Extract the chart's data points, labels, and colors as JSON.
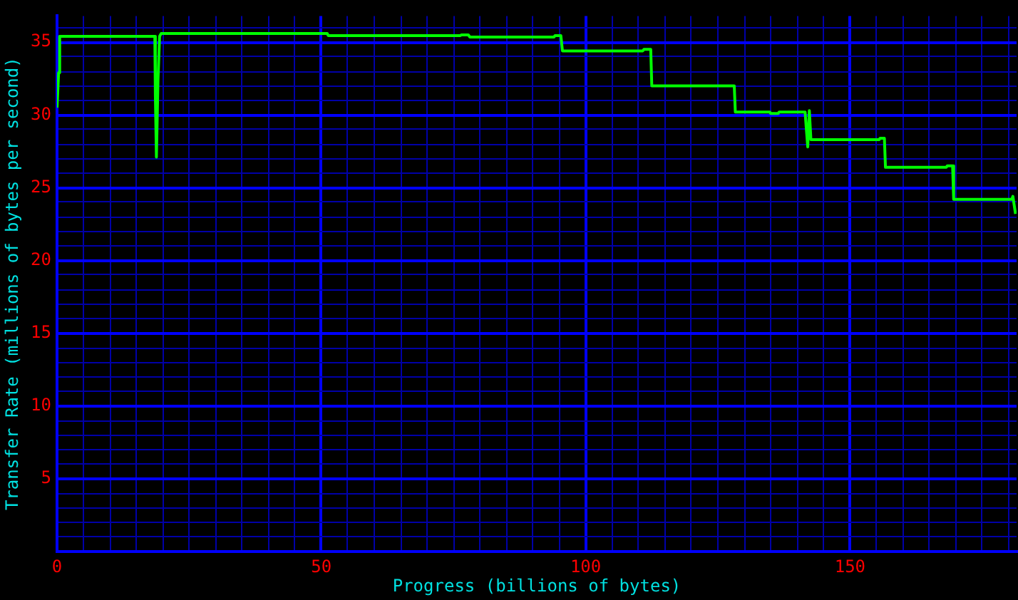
{
  "chart_data": {
    "type": "line",
    "xlabel": "Progress (billions of bytes)",
    "ylabel": "Transfer Rate (millions of bytes per second)",
    "xlim": [
      0,
      181.5
    ],
    "ylim": [
      0,
      36.8
    ],
    "xticks": [
      0,
      {
        "value": 5,
        "label": null
      },
      {
        "value": 10,
        "label": null
      },
      {
        "value": 15,
        "label": null
      },
      {
        "value": 20,
        "label": null
      },
      {
        "value": 25,
        "label": null
      },
      {
        "value": 30,
        "label": null
      },
      {
        "value": 35,
        "label": null
      },
      {
        "value": 40,
        "label": null
      },
      {
        "value": 45,
        "label": null
      },
      50,
      {
        "value": 55,
        "label": null
      },
      {
        "value": 60,
        "label": null
      },
      {
        "value": 65,
        "label": null
      },
      {
        "value": 70,
        "label": null
      },
      {
        "value": 75,
        "label": null
      },
      {
        "value": 80,
        "label": null
      },
      {
        "value": 85,
        "label": null
      },
      {
        "value": 90,
        "label": null
      },
      {
        "value": 95,
        "label": null
      },
      100,
      {
        "value": 105,
        "label": null
      },
      {
        "value": 110,
        "label": null
      },
      {
        "value": 115,
        "label": null
      },
      {
        "value": 120,
        "label": null
      },
      {
        "value": 125,
        "label": null
      },
      {
        "value": 130,
        "label": null
      },
      {
        "value": 135,
        "label": null
      },
      {
        "value": 140,
        "label": null
      },
      {
        "value": 145,
        "label": null
      },
      150,
      {
        "value": 155,
        "label": null
      },
      {
        "value": 160,
        "label": null
      },
      {
        "value": 165,
        "label": null
      },
      {
        "value": 170,
        "label": null
      },
      {
        "value": 175,
        "label": null
      },
      {
        "value": 180,
        "label": null
      }
    ],
    "yticks": [
      {
        "value": 0,
        "label": null
      },
      {
        "value": 1,
        "label": null
      },
      {
        "value": 2,
        "label": null
      },
      {
        "value": 3,
        "label": null
      },
      {
        "value": 4,
        "label": null
      },
      5,
      {
        "value": 6,
        "label": null
      },
      {
        "value": 7,
        "label": null
      },
      {
        "value": 8,
        "label": null
      },
      {
        "value": 9,
        "label": null
      },
      10,
      {
        "value": 11,
        "label": null
      },
      {
        "value": 12,
        "label": null
      },
      {
        "value": 13,
        "label": null
      },
      {
        "value": 14,
        "label": null
      },
      15,
      {
        "value": 16,
        "label": null
      },
      {
        "value": 17,
        "label": null
      },
      {
        "value": 18,
        "label": null
      },
      {
        "value": 19,
        "label": null
      },
      20,
      {
        "value": 21,
        "label": null
      },
      {
        "value": 22,
        "label": null
      },
      {
        "value": 23,
        "label": null
      },
      {
        "value": 24,
        "label": null
      },
      25,
      {
        "value": 26,
        "label": null
      },
      {
        "value": 27,
        "label": null
      },
      {
        "value": 28,
        "label": null
      },
      {
        "value": 29,
        "label": null
      },
      30,
      {
        "value": 31,
        "label": null
      },
      {
        "value": 32,
        "label": null
      },
      {
        "value": 33,
        "label": null
      },
      {
        "value": 34,
        "label": null
      },
      35,
      {
        "value": 36,
        "label": null
      }
    ],
    "grid": true,
    "legend": false,
    "marker": "none",
    "line_style": "solid",
    "series": [
      {
        "color": "#00ff00",
        "x": [
          0,
          0.3,
          0.5,
          18.5,
          18.6,
          18.8,
          19.1,
          19.4,
          19.7,
          51.1,
          51.3,
          76.3,
          76.5,
          77.8,
          78.1,
          94.0,
          94.2,
          95.3,
          95.6,
          110.8,
          111.0,
          112.3,
          112.5,
          128.1,
          128.3,
          134.8,
          135.0,
          136.4,
          136.6,
          141.5,
          141.7,
          142.0,
          142.3,
          142.6,
          155.5,
          155.7,
          156.5,
          156.7,
          168.2,
          168.4,
          169.4,
          169.6,
          180.6,
          180.8,
          181.3
        ],
        "values": [
          30.5,
          32.9,
          35.4,
          35.4,
          31.3,
          27.1,
          32.4,
          35.4,
          35.6,
          35.6,
          35.45,
          35.45,
          35.5,
          35.5,
          35.35,
          35.35,
          35.45,
          35.45,
          34.4,
          34.4,
          34.5,
          34.5,
          32.0,
          32.0,
          30.2,
          30.2,
          30.1,
          30.1,
          30.2,
          30.2,
          29.2,
          27.8,
          30.3,
          28.3,
          28.3,
          28.4,
          28.4,
          26.4,
          26.4,
          26.5,
          26.5,
          24.2,
          24.2,
          24.4,
          23.2
        ]
      }
    ]
  }
}
